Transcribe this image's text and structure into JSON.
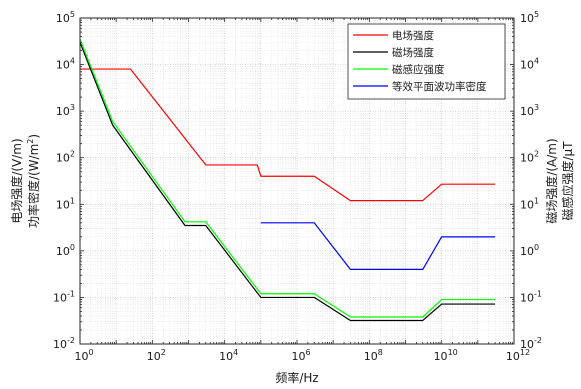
{
  "chart_data": {
    "type": "line",
    "xscale": "log",
    "yscale": "log",
    "xlim": [
      1,
      1000000000000.0
    ],
    "ylim": [
      0.01,
      100000
    ],
    "grid": true,
    "minor_grid": true,
    "legend_position": "top-right",
    "xlabel": "频率/Hz",
    "ylabel_left_line1": "电场强度/(V/m)",
    "ylabel_left_line2_base": "功率密度/(W/m",
    "ylabel_left_line2_sup": "2",
    "ylabel_left_line2_close": ")",
    "ylabel_right_line1": "磁场强度/(A/m)",
    "ylabel_right_line2": "磁感应强度/μT",
    "x_ticks": [
      {
        "value": 1,
        "base": "10",
        "exp": "0"
      },
      {
        "value": 100,
        "base": "10",
        "exp": "2"
      },
      {
        "value": 10000,
        "base": "10",
        "exp": "4"
      },
      {
        "value": 1000000,
        "base": "10",
        "exp": "6"
      },
      {
        "value": 100000000,
        "base": "10",
        "exp": "8"
      },
      {
        "value": 10000000000,
        "base": "10",
        "exp": "10"
      },
      {
        "value": 1000000000000,
        "base": "10",
        "exp": "12"
      }
    ],
    "y_ticks": [
      {
        "value": 0.01,
        "base": "10",
        "exp": "-2"
      },
      {
        "value": 0.1,
        "base": "10",
        "exp": "-1"
      },
      {
        "value": 1,
        "base": "10",
        "exp": "0"
      },
      {
        "value": 10,
        "base": "10",
        "exp": "1"
      },
      {
        "value": 100,
        "base": "10",
        "exp": "2"
      },
      {
        "value": 1000,
        "base": "10",
        "exp": "3"
      },
      {
        "value": 10000,
        "base": "10",
        "exp": "4"
      },
      {
        "value": 100000,
        "base": "10",
        "exp": "5"
      }
    ],
    "series": [
      {
        "name": "电场强度",
        "color": "#ff0000",
        "points": [
          [
            1,
            8000
          ],
          [
            25,
            8000
          ],
          [
            3000,
            70
          ],
          [
            80000,
            70
          ],
          [
            100000,
            40
          ],
          [
            3000000,
            40
          ],
          [
            30000000,
            12
          ],
          [
            3000000000,
            12
          ],
          [
            10000000000,
            27
          ],
          [
            300000000000,
            27
          ]
        ]
      },
      {
        "name": "磁场强度",
        "color": "#000000",
        "points": [
          [
            1,
            30000
          ],
          [
            8,
            500
          ],
          [
            800,
            3.5
          ],
          [
            3000,
            3.5
          ],
          [
            100000,
            0.1
          ],
          [
            3000000,
            0.1
          ],
          [
            30000000,
            0.032
          ],
          [
            3000000000,
            0.032
          ],
          [
            10000000000,
            0.072
          ],
          [
            300000000000,
            0.072
          ]
        ]
      },
      {
        "name": "磁感应强度",
        "color": "#00ff00",
        "points": [
          [
            1,
            35000
          ],
          [
            8,
            600
          ],
          [
            800,
            4.2
          ],
          [
            3000,
            4.2
          ],
          [
            100000,
            0.12
          ],
          [
            3000000,
            0.12
          ],
          [
            30000000,
            0.038
          ],
          [
            3000000000,
            0.038
          ],
          [
            10000000000,
            0.09
          ],
          [
            300000000000,
            0.09
          ]
        ]
      },
      {
        "name": "等效平面波功率密度",
        "color": "#0000ff",
        "points": [
          [
            100000,
            4
          ],
          [
            3000000,
            4
          ],
          [
            30000000,
            0.4
          ],
          [
            3000000000,
            0.4
          ],
          [
            10000000000,
            2
          ],
          [
            300000000000,
            2
          ]
        ]
      }
    ]
  }
}
